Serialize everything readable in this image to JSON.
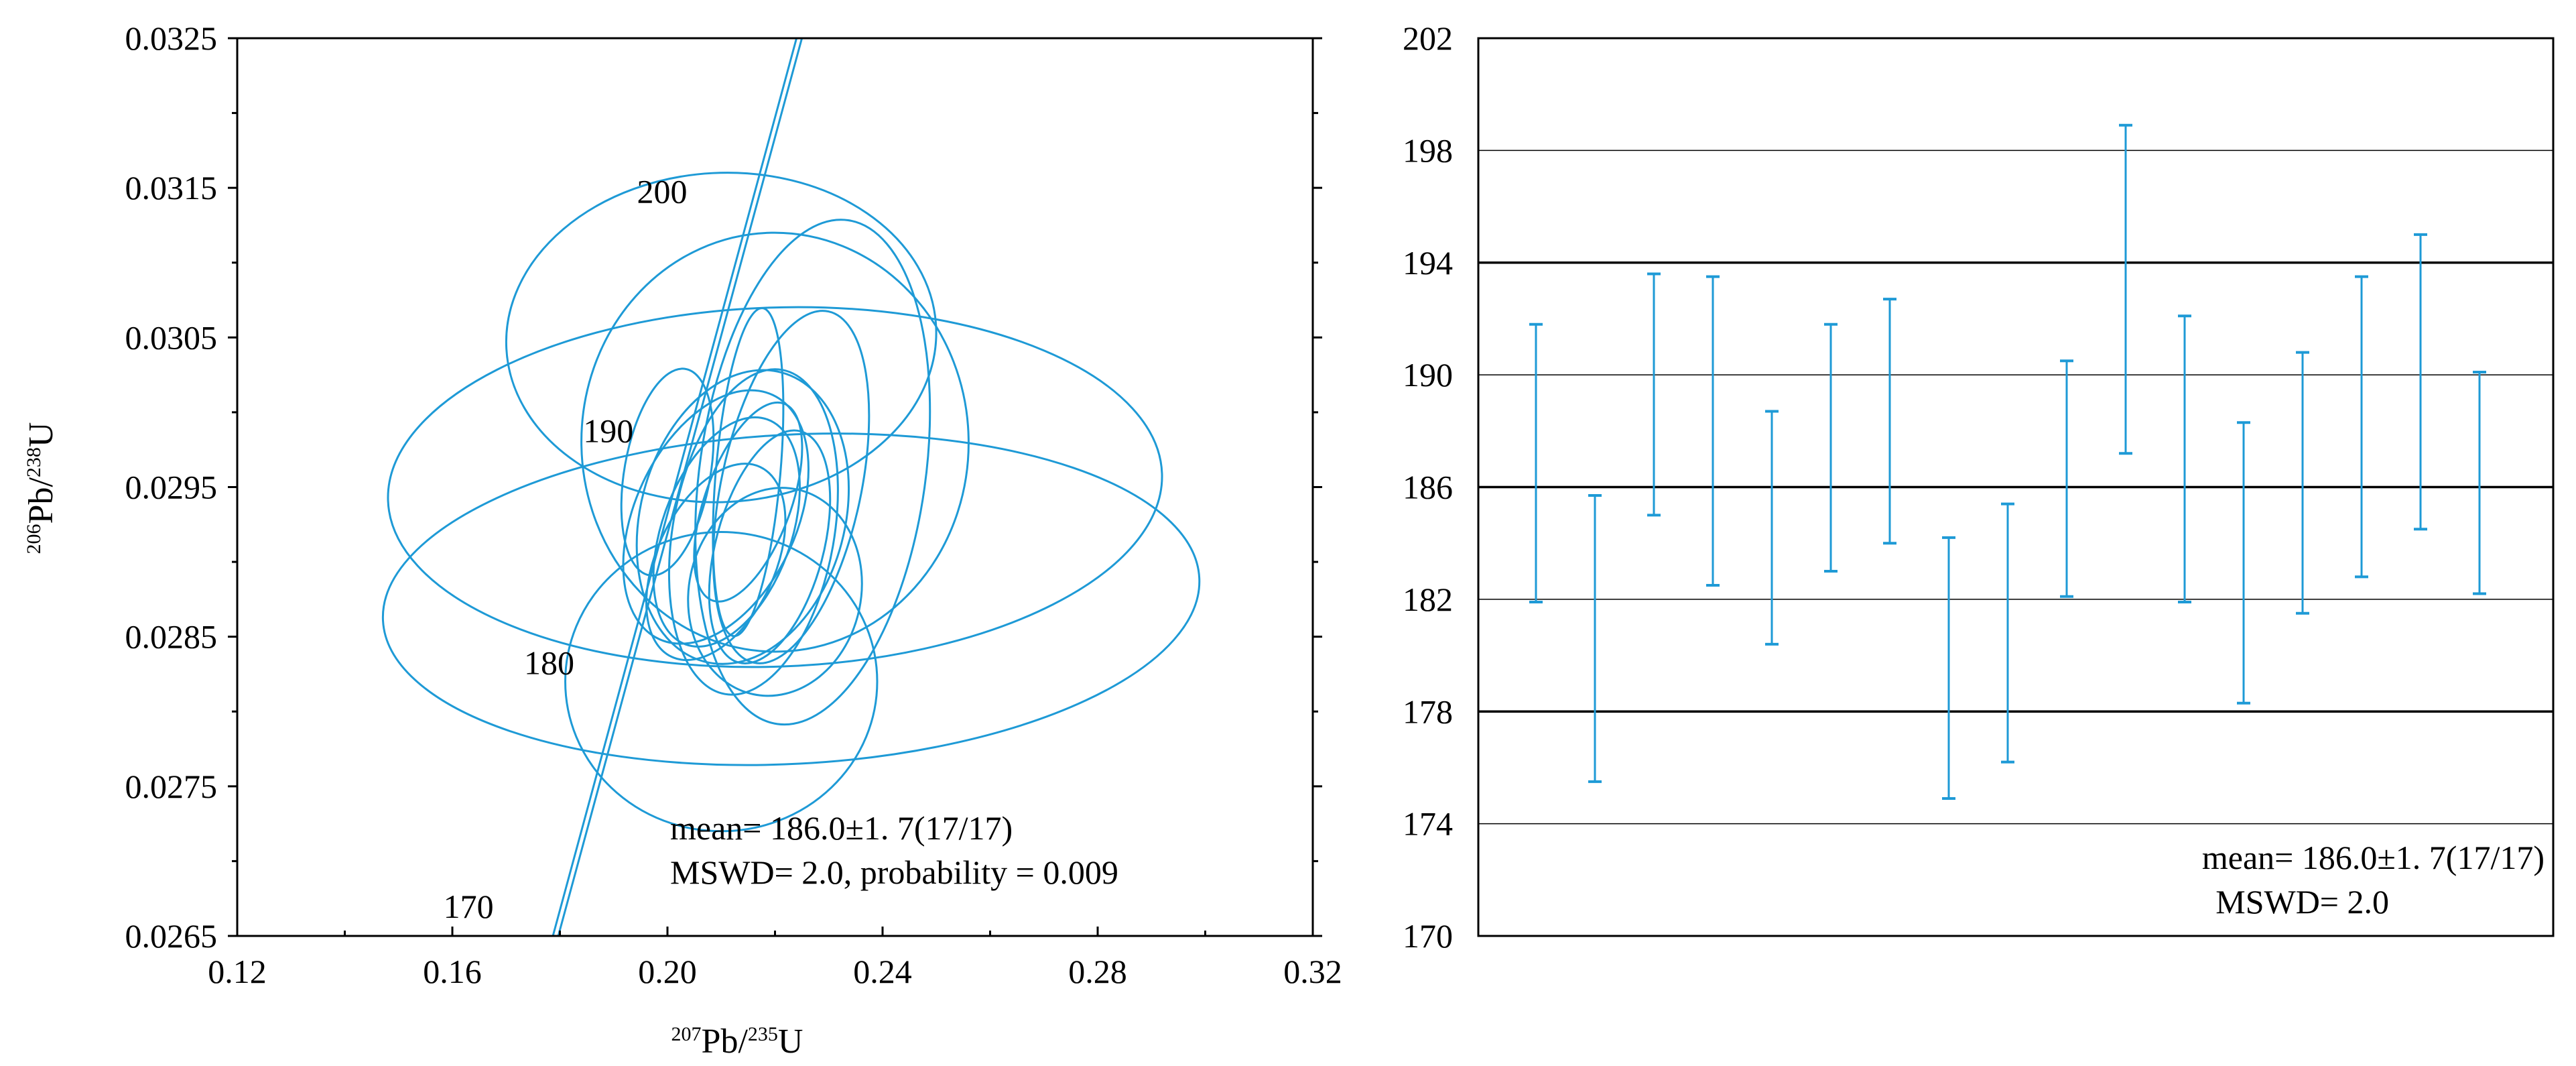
{
  "colors": {
    "data": "#1e9ad6",
    "axis": "#000000",
    "background": "#ffffff"
  },
  "chart_data": [
    {
      "type": "concordia",
      "xlabel": {
        "iso": "207",
        "main": "Pb/",
        "iso2": "235",
        "main2": "U"
      },
      "ylabel": {
        "iso": "206",
        "main": "Pb/",
        "iso2": "238",
        "main2": "U"
      },
      "xlim": [
        0.12,
        0.32
      ],
      "ylim": [
        0.0265,
        0.0325
      ],
      "xticks": [
        "0.12",
        "0.16",
        "0.20",
        "0.24",
        "0.28",
        "0.32"
      ],
      "yticks": [
        "0.0265",
        "0.0275",
        "0.0285",
        "0.0295",
        "0.0305",
        "0.0315",
        "0.0325"
      ],
      "age_labels": [
        {
          "label": "170",
          "x": 0.163,
          "y": 0.02662
        },
        {
          "label": "180",
          "x": 0.178,
          "y": 0.02825
        },
        {
          "label": "190",
          "x": 0.189,
          "y": 0.0298
        },
        {
          "label": "200",
          "x": 0.199,
          "y": 0.0314
        }
      ],
      "concordia": {
        "x_start": 0.1792,
        "y_start": 0.0265,
        "x_end": 0.2245,
        "y_end": 0.0325
      },
      "ellipses": [
        {
          "cx": 0.223,
          "cy": 0.02875,
          "rx": 0.076,
          "ry": 0.0011,
          "rot": -3
        },
        {
          "cx": 0.22,
          "cy": 0.0295,
          "rx": 0.072,
          "ry": 0.0012,
          "rot": -2
        },
        {
          "cx": 0.21,
          "cy": 0.0305,
          "rx": 0.04,
          "ry": 0.0011,
          "rot": -3
        },
        {
          "cx": 0.21,
          "cy": 0.0282,
          "rx": 0.029,
          "ry": 0.001,
          "rot": 0
        },
        {
          "cx": 0.22,
          "cy": 0.0298,
          "rx": 0.036,
          "ry": 0.0014,
          "rot": -1
        },
        {
          "cx": 0.227,
          "cy": 0.0296,
          "rx": 0.021,
          "ry": 0.0017,
          "rot": 8
        },
        {
          "cx": 0.214,
          "cy": 0.0293,
          "rx": 0.019,
          "ry": 0.001,
          "rot": 15
        },
        {
          "cx": 0.216,
          "cy": 0.0292,
          "rx": 0.015,
          "ry": 0.0011,
          "rot": 10
        },
        {
          "cx": 0.211,
          "cy": 0.0292,
          "rx": 0.012,
          "ry": 0.0008,
          "rot": 20
        },
        {
          "cx": 0.209,
          "cy": 0.029,
          "rx": 0.011,
          "ry": 0.0007,
          "rot": 25
        },
        {
          "cx": 0.219,
          "cy": 0.0291,
          "rx": 0.01,
          "ry": 0.0008,
          "rot": 15
        },
        {
          "cx": 0.215,
          "cy": 0.0294,
          "rx": 0.008,
          "ry": 0.0007,
          "rot": 20
        },
        {
          "cx": 0.215,
          "cy": 0.0296,
          "rx": 0.006,
          "ry": 0.0011,
          "rot": 5
        },
        {
          "cx": 0.22,
          "cy": 0.0288,
          "rx": 0.016,
          "ry": 0.0007,
          "rot": 12
        },
        {
          "cx": 0.2,
          "cy": 0.0296,
          "rx": 0.008,
          "ry": 0.0007,
          "rot": 10
        },
        {
          "cx": 0.223,
          "cy": 0.0295,
          "rx": 0.013,
          "ry": 0.0012,
          "rot": 12
        },
        {
          "cx": 0.209,
          "cy": 0.0293,
          "rx": 0.015,
          "ry": 0.0009,
          "rot": 25
        }
      ],
      "annotation": [
        "mean= 186.0±1. 7(17/17)",
        "MSWD= 2.0, probability = 0.009"
      ]
    },
    {
      "type": "errorbar",
      "ylim": [
        170,
        202
      ],
      "yticks": [
        "170",
        "174",
        "178",
        "182",
        "186",
        "190",
        "194",
        "198",
        "202"
      ],
      "mean": 186,
      "mean_band": [
        178,
        194
      ],
      "bars": [
        {
          "low": 181.9,
          "high": 191.8
        },
        {
          "low": 175.5,
          "high": 185.7
        },
        {
          "low": 185.0,
          "high": 193.6
        },
        {
          "low": 182.5,
          "high": 193.5
        },
        {
          "low": 180.4,
          "high": 188.7
        },
        {
          "low": 183.0,
          "high": 191.8
        },
        {
          "low": 184.0,
          "high": 192.7
        },
        {
          "low": 174.9,
          "high": 184.2
        },
        {
          "low": 176.2,
          "high": 185.4
        },
        {
          "low": 182.1,
          "high": 190.5
        },
        {
          "low": 187.2,
          "high": 198.9
        },
        {
          "low": 181.9,
          "high": 192.1
        },
        {
          "low": 178.3,
          "high": 188.3
        },
        {
          "low": 181.5,
          "high": 190.8
        },
        {
          "low": 182.8,
          "high": 193.5
        },
        {
          "low": 184.5,
          "high": 195.0
        },
        {
          "low": 182.2,
          "high": 190.1
        }
      ],
      "annotation": [
        "mean= 186.0±1. 7(17/17)",
        "MSWD= 2.0"
      ]
    }
  ]
}
